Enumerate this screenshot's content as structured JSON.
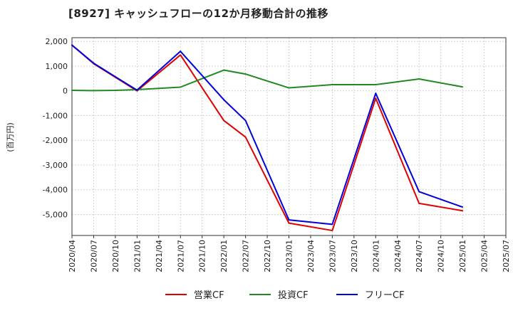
{
  "chart_data": {
    "type": "line",
    "title": "[8927]  キャッシュフローの12か月移動合計の推移",
    "ylabel": "(百万円)",
    "xlabel": "",
    "ylim": [
      -5850,
      2150
    ],
    "yticks": [
      2000,
      1000,
      0,
      -1000,
      -2000,
      -3000,
      -4000,
      -5000
    ],
    "ytick_labels": [
      "2,000",
      "1,000",
      "0",
      "-1,000",
      "-2,000",
      "-3,000",
      "-4,000",
      "-5,000"
    ],
    "categories": [
      "2020/04",
      "2020/07",
      "2020/10",
      "2021/01",
      "2021/04",
      "2021/07",
      "2021/10",
      "2022/01",
      "2022/07",
      "2022/10",
      "2023/01",
      "2023/04",
      "2023/07",
      "2023/10",
      "2024/01",
      "2024/04",
      "2024/07",
      "2024/10",
      "2025/01",
      "2025/04",
      "2025/07"
    ],
    "grid": true,
    "legend_position": "bottom",
    "series": [
      {
        "name": "営業CF",
        "color": "#e00000",
        "points": [
          [
            "2020/04",
            1850
          ],
          [
            "2020/07",
            1100
          ],
          [
            "2020/10",
            550
          ],
          [
            "2021/01",
            0
          ],
          [
            "2021/07",
            1450
          ],
          [
            "2022/01",
            -1200
          ],
          [
            "2022/07",
            -1870
          ],
          [
            "2023/01",
            -5350
          ],
          [
            "2023/07",
            -5650
          ],
          [
            "2024/01",
            -300
          ],
          [
            "2024/07",
            -4550
          ],
          [
            "2025/01",
            -4850
          ]
        ]
      },
      {
        "name": "投資CF",
        "color": "#228822",
        "points": [
          [
            "2020/04",
            20
          ],
          [
            "2020/07",
            10
          ],
          [
            "2020/10",
            20
          ],
          [
            "2021/01",
            50
          ],
          [
            "2021/07",
            150
          ],
          [
            "2022/01",
            840
          ],
          [
            "2022/07",
            680
          ],
          [
            "2023/01",
            120
          ],
          [
            "2023/07",
            250
          ],
          [
            "2024/01",
            250
          ],
          [
            "2024/07",
            480
          ],
          [
            "2025/01",
            160
          ]
        ]
      },
      {
        "name": "フリーCF",
        "color": "#0000dd",
        "points": [
          [
            "2020/04",
            1850
          ],
          [
            "2020/07",
            1120
          ],
          [
            "2020/10",
            570
          ],
          [
            "2021/01",
            30
          ],
          [
            "2021/07",
            1600
          ],
          [
            "2022/01",
            -360
          ],
          [
            "2022/07",
            -1200
          ],
          [
            "2023/01",
            -5220
          ],
          [
            "2023/07",
            -5400
          ],
          [
            "2024/01",
            -100
          ],
          [
            "2024/07",
            -4080
          ],
          [
            "2025/01",
            -4700
          ]
        ]
      }
    ]
  }
}
